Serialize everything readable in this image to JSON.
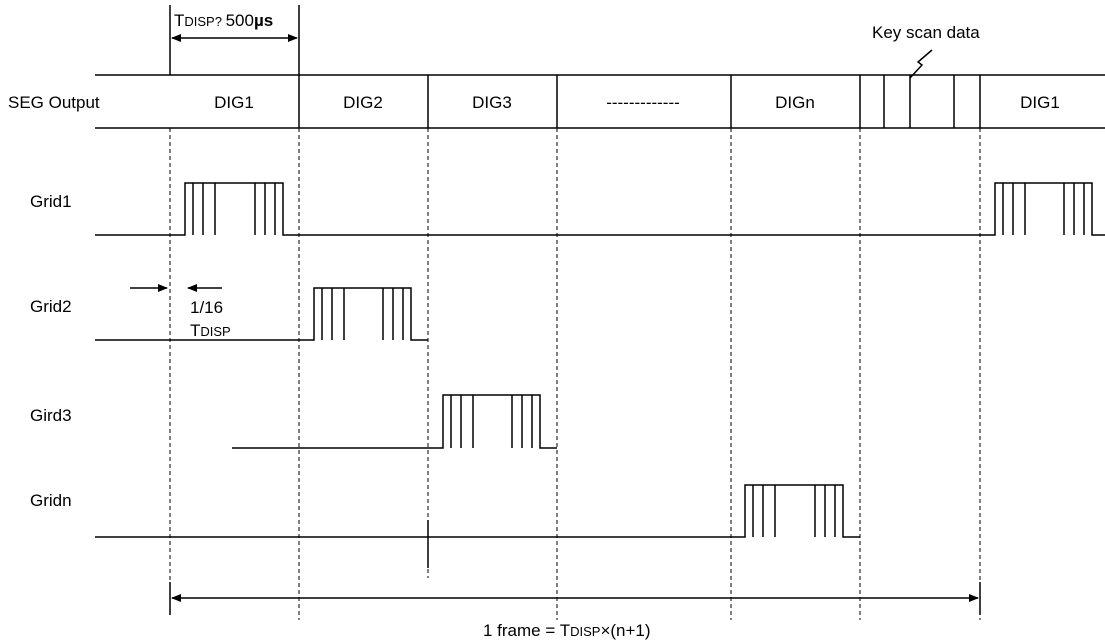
{
  "timing": {
    "t_disp_sub": "DISP? ",
    "t_disp_value": "500",
    "t_disp_unit": "µs"
  },
  "key_scan_label": "Key scan data",
  "seg_output_label": "SEG Output",
  "segments": {
    "dig1": "DIG1",
    "dig2": "DIG2",
    "dig3": "DIG3",
    "dashes": "-------------",
    "dign": "DIGn",
    "dig1_repeat": "DIG1"
  },
  "rows": {
    "grid1": "Grid1",
    "grid2": "Grid2",
    "gird3": "Gird3",
    "gridn": "Gridn"
  },
  "fraction": {
    "value": "1/16",
    "t_sub": "DISP"
  },
  "frame": {
    "prefix": "1 frame = T",
    "sub": "DISP",
    "suffix": "×(n+1)"
  }
}
